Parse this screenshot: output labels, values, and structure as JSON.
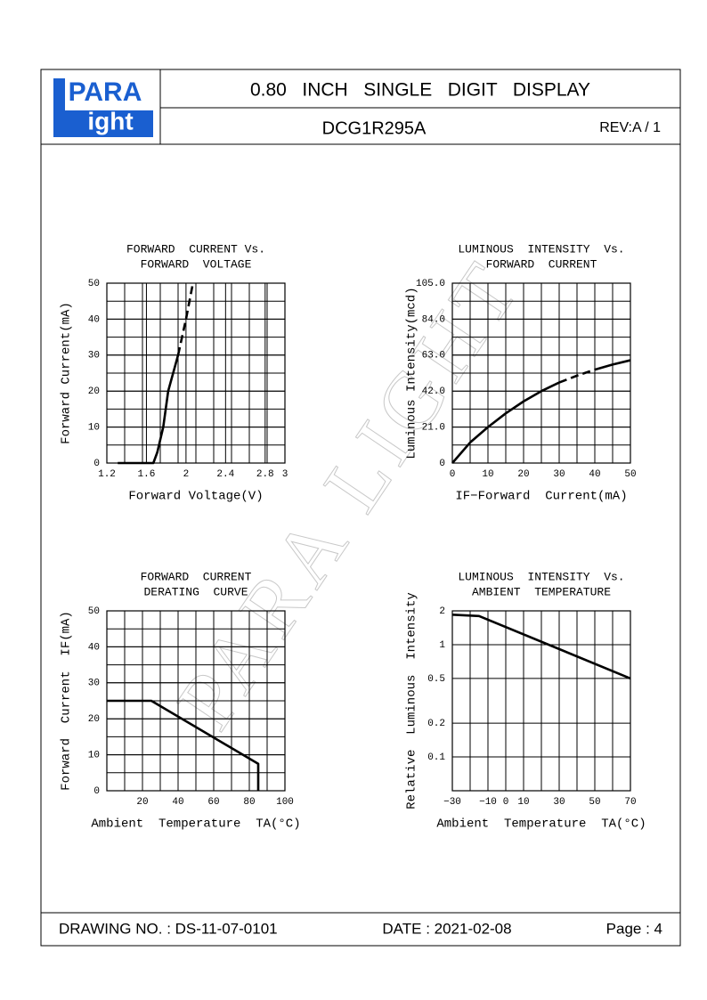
{
  "header": {
    "logo_top": "PARA",
    "logo_bottom": "ight",
    "title": "0.80   INCH   SINGLE   DIGIT   DISPLAY",
    "part": "DCG1R295A",
    "rev": "REV:A / 1"
  },
  "watermark": "PARA LIGHT",
  "footer": {
    "drawing": "DRAWING NO. : DS-11-07-0101",
    "date": "DATE : 2021-02-08",
    "page": "Page : 4"
  },
  "chart_data": [
    {
      "type": "line",
      "title": [
        "FORWARD  CURRENT Vs.",
        "FORWARD  VOLTAGE"
      ],
      "x_label": "Forward Voltage(V)",
      "y_label": "Forward Current(mA)",
      "xlim": [
        1.2,
        3.0
      ],
      "xticks": [
        1.2,
        1.6,
        2.0,
        2.4,
        2.8,
        3.0
      ],
      "ylim": [
        0,
        50
      ],
      "yticks": [
        0,
        10,
        20,
        30,
        40,
        50
      ],
      "grid": true,
      "grid_columns": 10,
      "grid_rows": 10,
      "color": "#000000",
      "x": [
        1.31,
        1.67,
        1.71,
        1.77,
        1.82,
        1.92,
        2.0,
        2.07
      ],
      "series": [
        {
          "values": [
            0,
            0,
            3,
            10,
            20,
            30,
            null,
            null
          ],
          "dashed": false
        },
        {
          "values": [
            null,
            null,
            null,
            null,
            null,
            30,
            40,
            50
          ],
          "dashed": true
        }
      ]
    },
    {
      "type": "line",
      "title": [
        "LUMINOUS  INTENSITY  Vs.",
        "FORWARD  CURRENT"
      ],
      "x_label": "IF−Forward  Current(mA)",
      "y_label": "Luminous Intensity(mcd)",
      "xlim": [
        0,
        50
      ],
      "xticks": [
        0,
        10,
        20,
        30,
        40,
        50
      ],
      "ylim": [
        0,
        105
      ],
      "yticks": [
        0,
        {
          "value": 21,
          "label": "21.0"
        },
        {
          "value": 42,
          "label": "42.0"
        },
        {
          "value": 63,
          "label": "63.0"
        },
        {
          "value": 84,
          "label": "84.0"
        },
        {
          "value": 105,
          "label": "105.0"
        }
      ],
      "grid": true,
      "grid_columns": 10,
      "grid_rows": 10,
      "color": "#000000",
      "x": [
        0,
        5,
        10,
        15,
        20,
        25,
        30,
        35,
        40,
        45,
        50
      ],
      "series": [
        {
          "values": [
            0,
            12,
            21,
            29,
            36,
            42,
            47,
            null,
            54.5,
            57.5,
            60
          ],
          "dashed": false
        },
        {
          "values": [
            null,
            null,
            null,
            null,
            null,
            null,
            47,
            51,
            54.5,
            null,
            null
          ],
          "dashed": true
        }
      ]
    },
    {
      "type": "line",
      "title": [
        "FORWARD  CURRENT",
        "DERATING  CURVE"
      ],
      "x_label": "Ambient  Temperature  TA(°C)",
      "y_label": "Forward  Current  IF(mA)",
      "xlim": [
        0,
        100
      ],
      "xticks": [
        20,
        40,
        60,
        80,
        100
      ],
      "ylim": [
        0,
        50
      ],
      "yticks": [
        0,
        10,
        20,
        30,
        40,
        50
      ],
      "grid": true,
      "grid_columns": 10,
      "grid_rows": 10,
      "color": "#000000",
      "x": [
        0,
        25,
        85,
        85
      ],
      "series": [
        {
          "values": [
            25,
            25,
            7.5,
            0
          ],
          "dashed": false
        }
      ]
    },
    {
      "type": "line",
      "title": [
        "LUMINOUS  INTENSITY  Vs.",
        "AMBIENT  TEMPERATURE"
      ],
      "x_label": "Ambient  Temperature  TA(°C)",
      "y_label": "Relative  Luminous  Intensity",
      "xlim": [
        -30,
        70
      ],
      "xticks": [
        {
          "value": -30,
          "label": "−30"
        },
        {
          "value": -10,
          "label": "−10"
        },
        0,
        10,
        30,
        50,
        70
      ],
      "ylim": [
        0.05,
        2
      ],
      "log_y": true,
      "yticks": [
        0.1,
        0.2,
        0.5,
        1,
        2
      ],
      "grid": true,
      "grid_columns": 10,
      "color": "#000000",
      "x": [
        -30,
        -15,
        70
      ],
      "series": [
        {
          "values": [
            1.85,
            1.8,
            0.5
          ],
          "dashed": false
        }
      ]
    }
  ]
}
